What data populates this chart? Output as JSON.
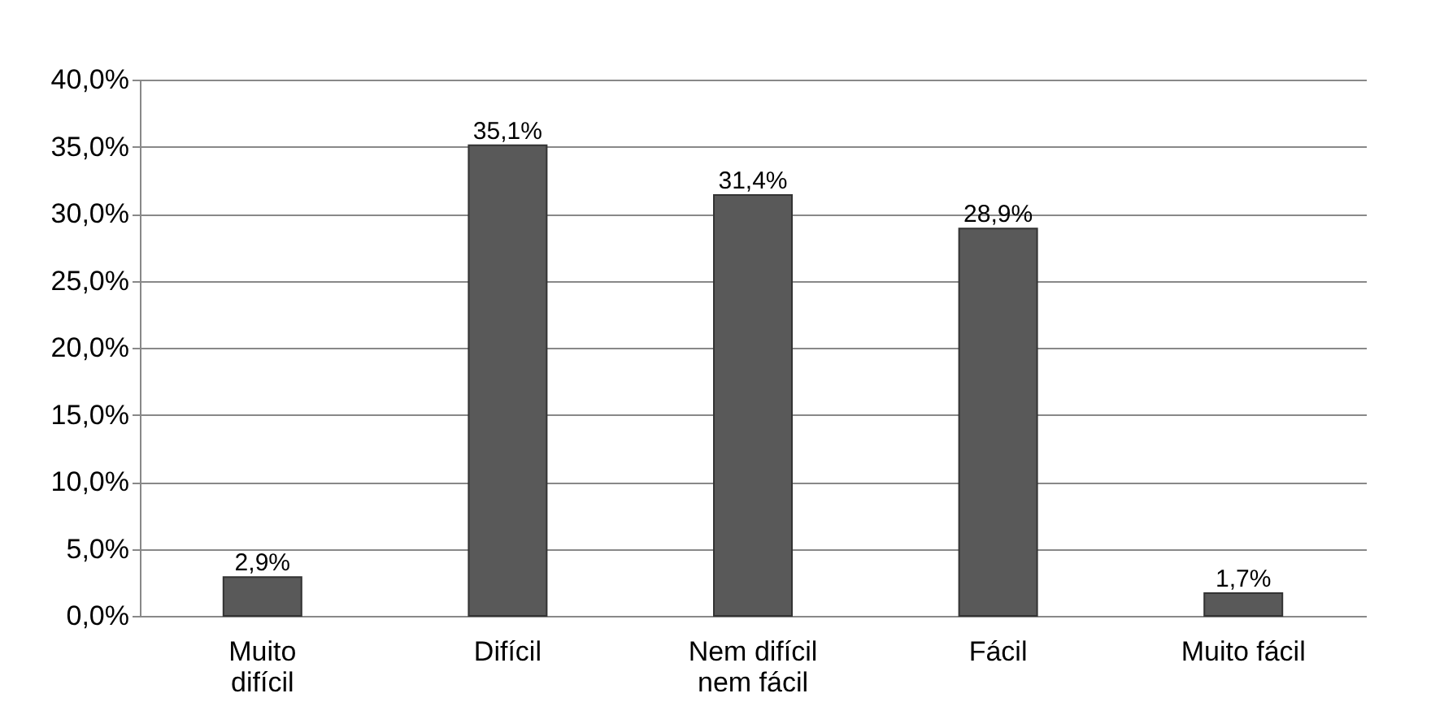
{
  "chart_data": {
    "type": "bar",
    "categories": [
      "Muito difícil",
      "Difícil",
      "Nem difícil nem fácil",
      "Fácil",
      "Muito fácil"
    ],
    "values": [
      2.9,
      35.1,
      31.4,
      28.9,
      1.7
    ],
    "value_labels": [
      "2,9%",
      "35,1%",
      "31,4%",
      "28,9%",
      "1,7%"
    ],
    "color": "#595959",
    "ylim": [
      0,
      40
    ],
    "yticks": [
      {
        "value": 0,
        "label": "0,0%"
      },
      {
        "value": 5,
        "label": "5,0%"
      },
      {
        "value": 10,
        "label": "10,0%"
      },
      {
        "value": 15,
        "label": "15,0%"
      },
      {
        "value": 20,
        "label": "20,0%"
      },
      {
        "value": 25,
        "label": "25,0%"
      },
      {
        "value": 30,
        "label": "30,0%"
      },
      {
        "value": 35,
        "label": "35,0%"
      },
      {
        "value": 40,
        "label": "40,0%"
      }
    ],
    "grid": "y"
  }
}
